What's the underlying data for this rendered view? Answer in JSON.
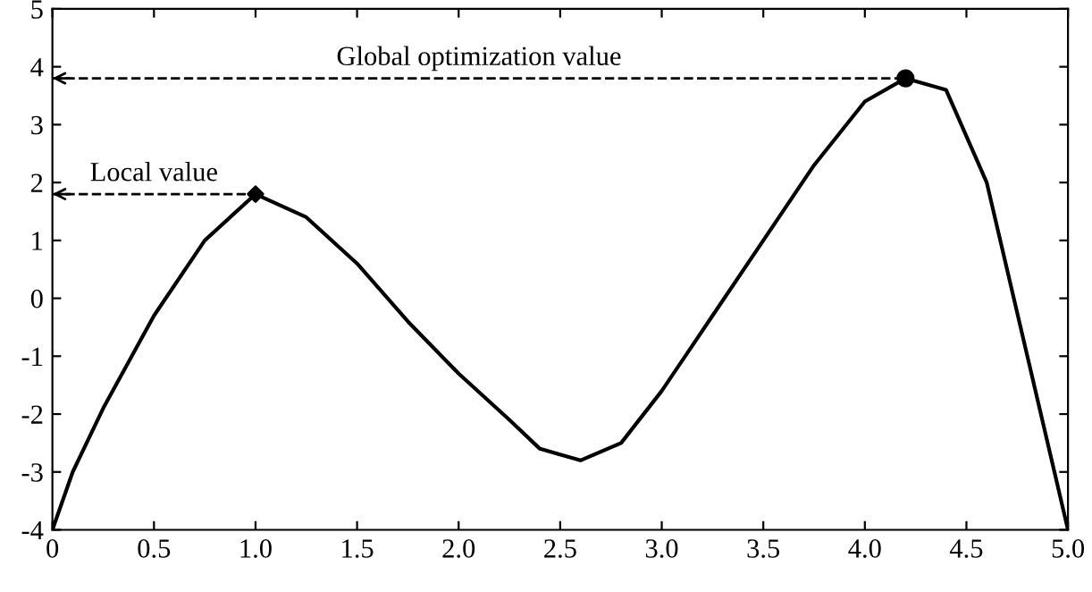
{
  "chart_data": {
    "type": "line",
    "xlim": [
      0,
      5
    ],
    "ylim": [
      -4,
      5
    ],
    "xticks": [
      0,
      0.5,
      {
        "value": 1,
        "label": "1.0"
      },
      1.5,
      {
        "value": 2,
        "label": "2.0"
      },
      2.5,
      {
        "value": 3,
        "label": "3.0"
      },
      3.5,
      {
        "value": 4,
        "label": "4.0"
      },
      4.5,
      {
        "value": 5,
        "label": "5.0"
      }
    ],
    "yticks": [
      -4,
      -3,
      -2,
      -1,
      0,
      1,
      2,
      3,
      4,
      5
    ],
    "grid": false,
    "series": [
      {
        "color": "#000000",
        "marker": "none",
        "line_style": "solid",
        "x": [
          0,
          0.1,
          0.25,
          0.5,
          0.75,
          1.0,
          1.25,
          1.5,
          1.75,
          2.0,
          2.25,
          2.4,
          2.6,
          2.8,
          3.0,
          3.25,
          3.5,
          3.75,
          4.0,
          4.2,
          4.4,
          4.6,
          4.8,
          5.0
        ],
        "values": [
          -4,
          -3.0,
          -1.9,
          -0.3,
          1.0,
          1.8,
          1.4,
          0.6,
          -0.4,
          -1.3,
          -2.1,
          -2.6,
          -2.8,
          -2.5,
          -1.6,
          -0.3,
          1.0,
          2.3,
          3.4,
          3.8,
          3.6,
          2.0,
          -1.0,
          -4
        ]
      },
      {
        "type": "scatter",
        "color": "#000000",
        "marker": "diamond",
        "x": [
          1.0
        ],
        "values": [
          1.8
        ]
      },
      {
        "type": "scatter",
        "color": "#000000",
        "marker": "circle",
        "x": [
          4.2
        ],
        "values": [
          3.8
        ]
      }
    ],
    "ref_lines": [
      {
        "axis": "y",
        "value": 1.8,
        "label": "Local value",
        "color": "#000000",
        "line_style": "dashed"
      },
      {
        "axis": "y",
        "value": 3.8,
        "label": "Global optimization value",
        "color": "#000000",
        "line_style": "dashed"
      }
    ]
  }
}
